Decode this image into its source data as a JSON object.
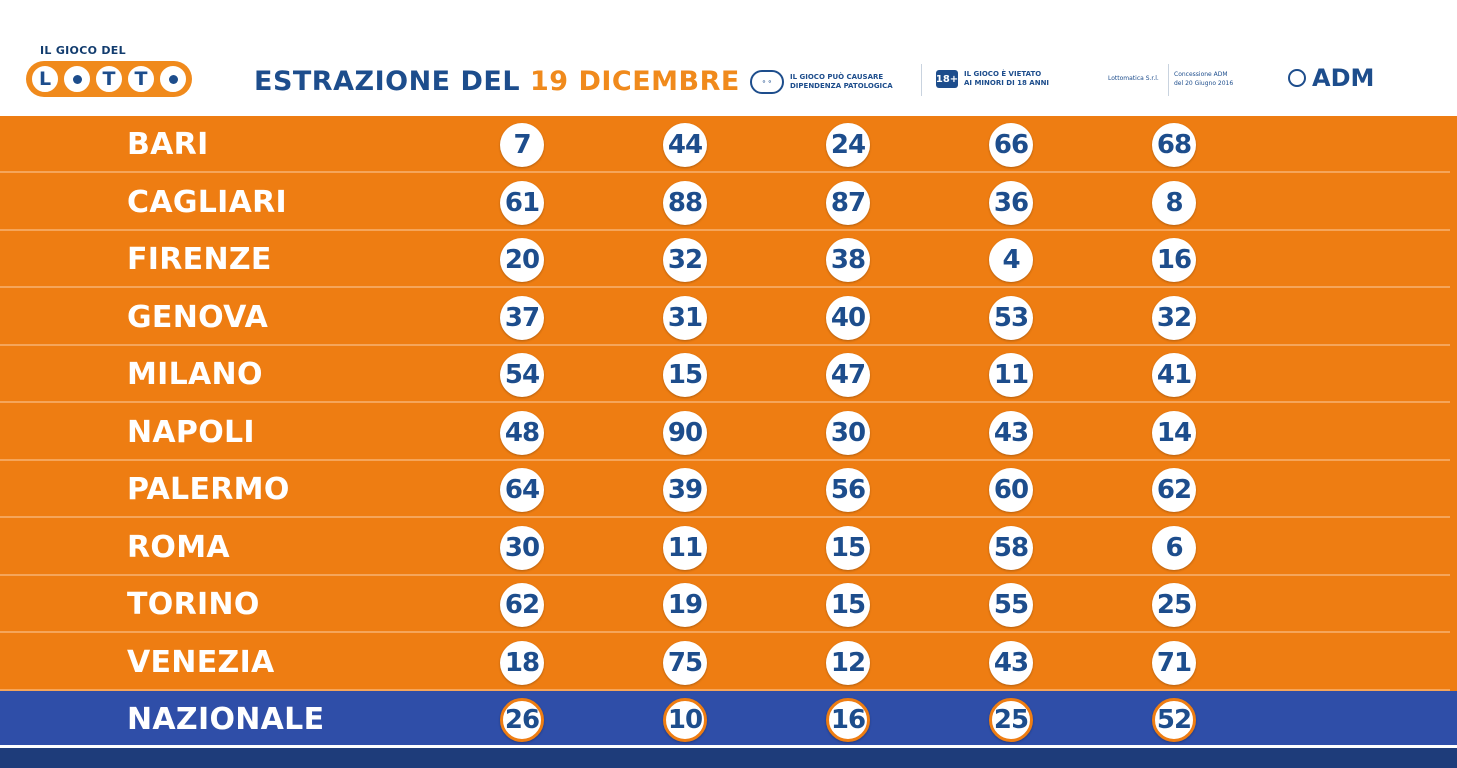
{
  "header": {
    "logo_top": "IL GIOCO DEL",
    "logo_letters": [
      "L",
      "",
      "T",
      "T",
      ""
    ],
    "title_prefix": "ESTRAZIONE DEL ",
    "title_date": "19 DICEMBRE",
    "notice_dependency_1": "IL GIOCO PUÒ CAUSARE",
    "notice_dependency_2": "DIPENDENZA PATOLOGICA",
    "notice_age_badge": "18+",
    "notice_age_1": "IL GIOCO È VIETATO",
    "notice_age_2": "AI MINORI DI 18 ANNI",
    "operator": "Lottomatica S.r.l.",
    "concession_1": "Concessione ADM",
    "concession_2": "del 20 Giugno 2016",
    "adm": "ADM"
  },
  "colors": {
    "orange": "#ee7d12",
    "blue": "#1d4d8c",
    "national_row": "#2f4ea8"
  },
  "rows": [
    {
      "city": "BARI",
      "numbers": [
        "7",
        "44",
        "24",
        "66",
        "68"
      ]
    },
    {
      "city": "CAGLIARI",
      "numbers": [
        "61",
        "88",
        "87",
        "36",
        "8"
      ]
    },
    {
      "city": "FIRENZE",
      "numbers": [
        "20",
        "32",
        "38",
        "4",
        "16"
      ]
    },
    {
      "city": "GENOVA",
      "numbers": [
        "37",
        "31",
        "40",
        "53",
        "32"
      ]
    },
    {
      "city": "MILANO",
      "numbers": [
        "54",
        "15",
        "47",
        "11",
        "41"
      ]
    },
    {
      "city": "NAPOLI",
      "numbers": [
        "48",
        "90",
        "30",
        "43",
        "14"
      ]
    },
    {
      "city": "PALERMO",
      "numbers": [
        "64",
        "39",
        "56",
        "60",
        "62"
      ]
    },
    {
      "city": "ROMA",
      "numbers": [
        "30",
        "11",
        "15",
        "58",
        "6"
      ]
    },
    {
      "city": "TORINO",
      "numbers": [
        "62",
        "19",
        "15",
        "55",
        "25"
      ]
    },
    {
      "city": "VENEZIA",
      "numbers": [
        "18",
        "75",
        "12",
        "43",
        "71"
      ]
    },
    {
      "city": "NAZIONALE",
      "numbers": [
        "26",
        "10",
        "16",
        "25",
        "52"
      ]
    }
  ]
}
